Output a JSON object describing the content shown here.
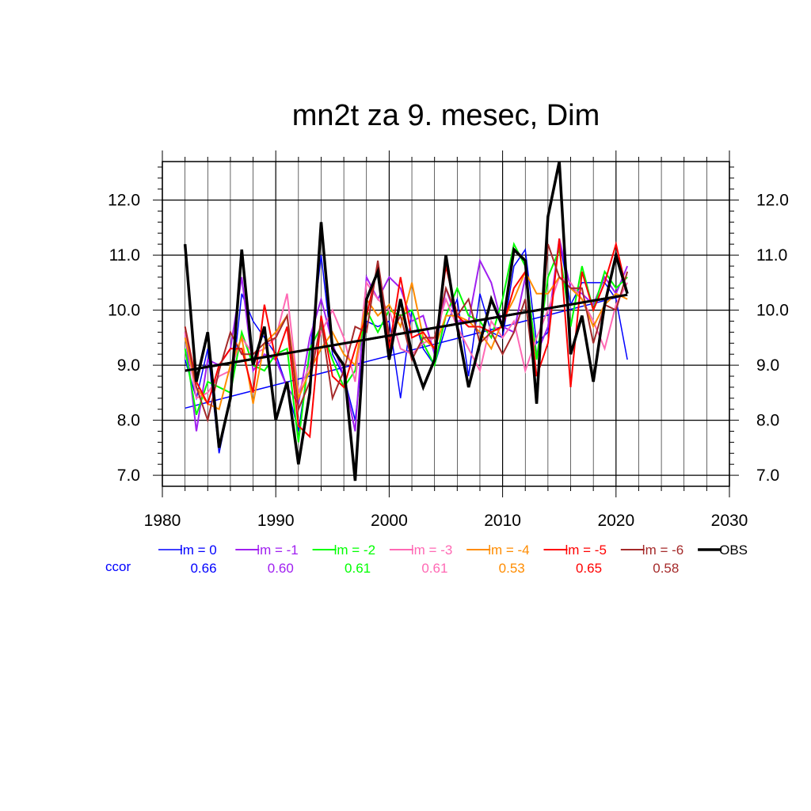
{
  "chart_data": {
    "type": "line",
    "title": "mn2t za 9. mesec, Dim",
    "xlabel": "",
    "ylabel": "",
    "xlim": [
      1980,
      2030
    ],
    "ylim": [
      6.8,
      12.7
    ],
    "xticks": [
      1980,
      1990,
      2000,
      2010,
      2020,
      2030
    ],
    "xtick_labels": [
      "1980",
      "1990",
      "2000",
      "2010",
      "2020",
      "2030"
    ],
    "yticks": [
      7.0,
      8.0,
      9.0,
      10.0,
      11.0,
      12.0
    ],
    "ytick_labels": [
      "7.0",
      "8.0",
      "9.0",
      "10.0",
      "11.0",
      "12.0"
    ],
    "grid": true,
    "legend_position": "bottom",
    "ccor_label": "ccor",
    "x": [
      1982,
      1983,
      1984,
      1985,
      1986,
      1987,
      1988,
      1989,
      1990,
      1991,
      1992,
      1993,
      1994,
      1995,
      1996,
      1997,
      1998,
      1999,
      2000,
      2001,
      2002,
      2003,
      2004,
      2005,
      2006,
      2007,
      2008,
      2009,
      2010,
      2011,
      2012,
      2013,
      2014,
      2015,
      2016,
      2017,
      2018,
      2019,
      2020,
      2021
    ],
    "series": [
      {
        "name": "lm = 0",
        "color": "#0000ff",
        "width": 1.5,
        "ccor": "0.66",
        "values": [
          9.1,
          8.4,
          9.3,
          7.4,
          8.4,
          10.3,
          9.8,
          9.5,
          9.2,
          8.6,
          7.8,
          9.2,
          11.0,
          9.2,
          8.8,
          8.0,
          9.8,
          9.7,
          9.8,
          8.4,
          10.0,
          9.3,
          9.0,
          9.7,
          10.2,
          8.8,
          10.3,
          9.6,
          9.5,
          10.8,
          11.1,
          9.4,
          9.6,
          11.3,
          10.1,
          10.5,
          10.5,
          10.5,
          10.2,
          9.1
        ]
      },
      {
        "name": "lm = -1",
        "color": "#a020f0",
        "width": 2,
        "ccor": "0.60",
        "values": [
          9.6,
          7.8,
          9.1,
          9.0,
          9.3,
          10.6,
          8.9,
          9.2,
          9.1,
          8.6,
          8.3,
          9.5,
          10.2,
          9.4,
          8.8,
          7.8,
          10.6,
          10.2,
          10.6,
          10.4,
          9.8,
          9.9,
          9.2,
          10.4,
          9.8,
          9.8,
          10.9,
          10.5,
          9.7,
          9.6,
          10.6,
          9.2,
          9.7,
          11.3,
          10.4,
          10.3,
          10.1,
          10.6,
          10.3,
          10.8
        ]
      },
      {
        "name": "lm = -2",
        "color": "#00ff00",
        "width": 2,
        "ccor": "0.61",
        "values": [
          9.3,
          8.1,
          8.7,
          8.6,
          8.5,
          9.6,
          9.0,
          8.9,
          9.2,
          9.3,
          7.6,
          9.3,
          9.7,
          9.1,
          8.6,
          8.9,
          10.0,
          9.6,
          10.0,
          9.9,
          10.0,
          9.4,
          9.0,
          9.9,
          10.4,
          9.9,
          9.8,
          9.5,
          10.2,
          11.2,
          10.8,
          9.1,
          10.6,
          11.1,
          9.7,
          10.8,
          10.0,
          10.7,
          10.4,
          10.6
        ]
      },
      {
        "name": "lm = -3",
        "color": "#ff69b4",
        "width": 2,
        "ccor": "0.61",
        "values": [
          9.6,
          8.4,
          8.5,
          8.8,
          8.9,
          9.5,
          9.2,
          9.3,
          9.5,
          10.3,
          8.5,
          9.0,
          9.6,
          10.0,
          9.5,
          8.7,
          10.5,
          10.2,
          10.0,
          9.3,
          9.2,
          9.4,
          9.5,
          10.2,
          9.7,
          9.3,
          8.9,
          9.8,
          9.5,
          9.8,
          8.9,
          9.5,
          10.0,
          10.6,
          10.5,
          10.2,
          9.8,
          9.3,
          10.1,
          10.5
        ]
      },
      {
        "name": "lm = -4",
        "color": "#ff8c00",
        "width": 2,
        "ccor": "0.53",
        "values": [
          9.5,
          8.6,
          8.3,
          8.2,
          9.0,
          9.5,
          8.3,
          9.4,
          9.6,
          9.9,
          8.4,
          8.9,
          9.3,
          9.6,
          9.2,
          9.0,
          10.2,
          9.9,
          10.1,
          9.7,
          10.5,
          9.5,
          9.3,
          9.9,
          9.9,
          9.8,
          9.6,
          9.3,
          9.8,
          10.2,
          10.7,
          10.3,
          10.3,
          10.6,
          10.4,
          10.2,
          9.7,
          10.1,
          10.3,
          10.2
        ]
      },
      {
        "name": "lm = -5",
        "color": "#ff0000",
        "width": 2,
        "ccor": "0.65",
        "values": [
          9.7,
          8.7,
          8.3,
          9.0,
          9.3,
          9.3,
          8.5,
          10.1,
          9.1,
          9.7,
          7.9,
          7.7,
          9.9,
          8.8,
          8.6,
          9.3,
          9.9,
          10.8,
          9.3,
          10.6,
          9.5,
          9.6,
          9.3,
          10.8,
          9.9,
          9.7,
          9.7,
          9.6,
          9.7,
          10.4,
          10.7,
          8.8,
          9.4,
          11.3,
          8.6,
          10.7,
          10.0,
          10.5,
          11.2,
          10.3
        ]
      },
      {
        "name": "lm = -6",
        "color": "#a52a2a",
        "width": 2,
        "ccor": "0.58",
        "values": [
          9.7,
          8.6,
          8.0,
          8.9,
          9.6,
          9.2,
          9.2,
          9.4,
          9.5,
          9.9,
          8.2,
          8.7,
          9.8,
          8.4,
          8.9,
          9.7,
          9.6,
          10.9,
          9.5,
          9.9,
          9.1,
          9.5,
          9.5,
          10.4,
          9.9,
          10.2,
          9.4,
          9.6,
          9.2,
          9.6,
          10.2,
          8.5,
          11.2,
          10.6,
          10.4,
          10.4,
          9.4,
          10.1,
          10.0,
          10.7
        ]
      },
      {
        "name": "OBS",
        "color": "#000000",
        "width": 3.5,
        "ccor": "",
        "values": [
          11.2,
          8.7,
          9.6,
          7.5,
          8.4,
          11.1,
          9.0,
          9.7,
          8.0,
          8.7,
          7.2,
          8.5,
          11.6,
          9.3,
          9.0,
          6.9,
          10.2,
          10.7,
          9.1,
          10.2,
          9.2,
          8.6,
          9.1,
          11.0,
          9.7,
          8.6,
          9.4,
          10.2,
          9.7,
          11.1,
          10.9,
          8.3,
          11.7,
          12.7,
          9.2,
          9.9,
          8.7,
          10.1,
          11.0,
          10.3
        ]
      }
    ],
    "trend_lines": [
      {
        "series": "lm = 0",
        "color": "#0000ff",
        "width": 1.5,
        "x": [
          1982,
          2021
        ],
        "y": [
          8.22,
          10.28
        ]
      },
      {
        "series": "OBS",
        "color": "#000000",
        "width": 3,
        "x": [
          1982,
          2021
        ],
        "y": [
          8.9,
          10.28
        ]
      }
    ]
  }
}
